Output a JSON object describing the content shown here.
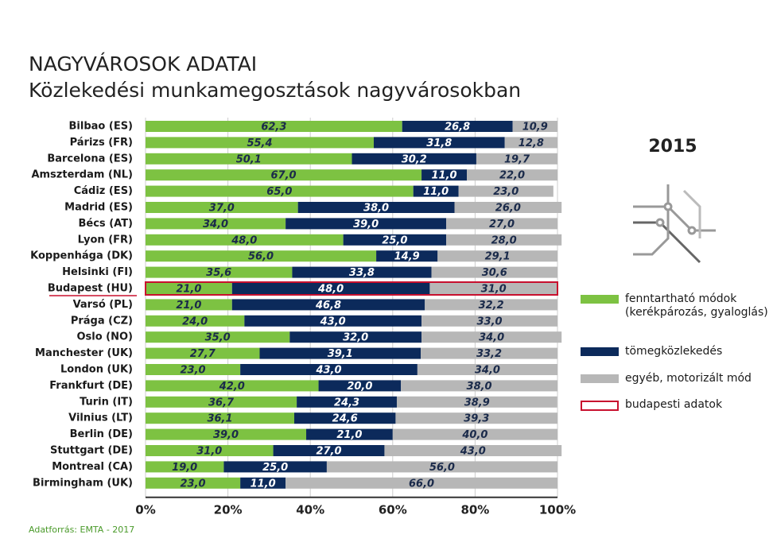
{
  "chart_data": {
    "type": "stacked-bar-horizontal",
    "title": "NAGYVÁROSOK ADATAI",
    "subtitle": "Közlekedési munkamegosztások nagyvárosokban",
    "year": "2015",
    "source": "Adatforrás: EMTA - 2017",
    "categories": [
      "Bilbao (ES)",
      "Párizs (FR)",
      "Barcelona (ES)",
      "Amszterdam (NL)",
      "Cádiz (ES)",
      "Madrid (ES)",
      "Bécs (AT)",
      "Lyon (FR)",
      "Koppenhága (DK)",
      "Helsinki (FI)",
      "Budapest (HU)",
      "Varsó (PL)",
      "Prága (CZ)",
      "Oslo (NO)",
      "Manchester (UK)",
      "London (UK)",
      "Frankfurt (DE)",
      "Turin (IT)",
      "Vilnius (LT)",
      "Berlin (DE)",
      "Stuttgart (DE)",
      "Montreal (CA)",
      "Birmingham (UK)"
    ],
    "series": [
      {
        "name": "fenntartható módok (kerékpározás, gyaloglás)",
        "color": "#7dc242",
        "values": [
          62.3,
          55.4,
          50.1,
          67.0,
          65.0,
          37.0,
          34.0,
          48.0,
          56.0,
          35.6,
          21.0,
          21.0,
          24.0,
          35.0,
          27.7,
          23.0,
          42.0,
          36.7,
          36.1,
          39.0,
          31.0,
          19.0,
          23.0
        ],
        "value_labels": [
          "62,3",
          "55,4",
          "50,1",
          "67,0",
          "65,0",
          "37,0",
          "34,0",
          "48,0",
          "56,0",
          "35,6",
          "21,0",
          "21,0",
          "24,0",
          "35,0",
          "27,7",
          "23,0",
          "42,0",
          "36,7",
          "36,1",
          "39,0",
          "31,0",
          "19,0",
          "23,0"
        ]
      },
      {
        "name": "tömegközlekedés",
        "color": "#0c2a5b",
        "values": [
          26.8,
          31.8,
          30.2,
          11.0,
          11.0,
          38.0,
          39.0,
          25.0,
          14.9,
          33.8,
          48.0,
          46.8,
          43.0,
          32.0,
          39.1,
          43.0,
          20.0,
          24.3,
          24.6,
          21.0,
          27.0,
          25.0,
          11.0
        ],
        "value_labels": [
          "26,8",
          "31,8",
          "30,2",
          "11,0",
          "11,0",
          "38,0",
          "39,0",
          "25,0",
          "14,9",
          "33,8",
          "48,0",
          "46,8",
          "43,0",
          "32,0",
          "39,1",
          "43,0",
          "20,0",
          "24,3",
          "24,6",
          "21,0",
          "27,0",
          "25,0",
          "11,0"
        ]
      },
      {
        "name": "egyéb, motorizált mód",
        "color": "#b7b7b7",
        "values": [
          10.9,
          12.8,
          19.7,
          22.0,
          23.0,
          26.0,
          27.0,
          28.0,
          29.1,
          30.6,
          31.0,
          32.2,
          33.0,
          34.0,
          33.2,
          34.0,
          38.0,
          38.9,
          39.3,
          40.0,
          43.0,
          56.0,
          66.0
        ],
        "value_labels": [
          "10,9",
          "12,8",
          "19,7",
          "22,0",
          "23,0",
          "26,0",
          "27,0",
          "28,0",
          "29,1",
          "30,6",
          "31,0",
          "32,2",
          "33,0",
          "34,0",
          "33,2",
          "34,0",
          "38,0",
          "38,9",
          "39,3",
          "40,0",
          "43,0",
          "56,0",
          "66,0"
        ]
      }
    ],
    "highlight": {
      "category_index": 10,
      "color": "#c8102e",
      "label": "budapesti adatok"
    },
    "xlim": [
      0,
      100
    ],
    "xticks": [
      {
        "value": 0,
        "label": "0%"
      },
      {
        "value": 20,
        "label": "20%"
      },
      {
        "value": 40,
        "label": "40%"
      },
      {
        "value": 60,
        "label": "60%"
      },
      {
        "value": 80,
        "label": "80%"
      },
      {
        "value": 100,
        "label": "100%"
      }
    ],
    "grid": true
  }
}
